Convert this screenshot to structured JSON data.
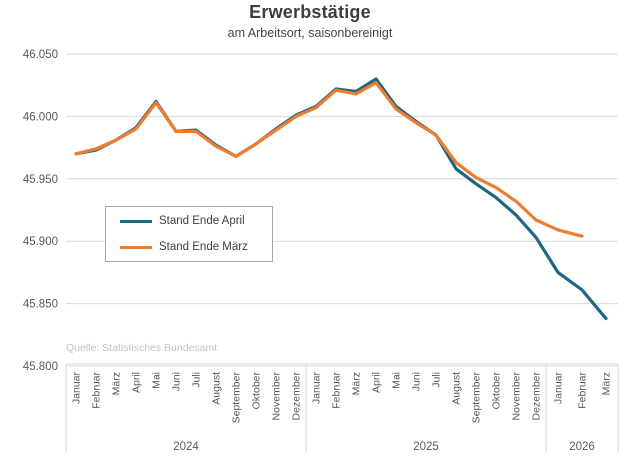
{
  "chart_data": {
    "type": "line",
    "title": "Erwerbstätige",
    "subtitle": "am Arbeitsort, saisonbereinigt",
    "source": "Quelle: Statistisches Bundesamt",
    "ylim": [
      45.8,
      46.05
    ],
    "ytick_step": 0.05,
    "ytick_labels": [
      "45.800",
      "45.850",
      "45.900",
      "45.950",
      "46.000",
      "46.050"
    ],
    "grid": true,
    "legend_position": "inside-left",
    "year_groups": [
      {
        "label": "2024",
        "months": [
          "Januar",
          "Februar",
          "März",
          "April",
          "Mai",
          "Juni",
          "Juli",
          "August",
          "September",
          "Oktober",
          "November",
          "Dezember"
        ]
      },
      {
        "label": "2025",
        "months": [
          "Januar",
          "Februar",
          "März",
          "April",
          "Mai",
          "Juni",
          "Juli",
          "August",
          "September",
          "Oktober",
          "November",
          "Dezember"
        ]
      },
      {
        "label": "2026",
        "months": [
          "Januar",
          "Februar",
          "März"
        ]
      }
    ],
    "series": [
      {
        "name": "Stand Ende April",
        "color": "#1f6584",
        "values": [
          45.97,
          45.973,
          45.981,
          45.991,
          46.012,
          45.988,
          45.989,
          45.977,
          45.968,
          45.978,
          45.99,
          46.001,
          46.008,
          46.022,
          46.02,
          46.03,
          46.008,
          45.996,
          45.985,
          45.958,
          45.946,
          45.935,
          45.921,
          45.903,
          45.875,
          45.861,
          45.838
        ]
      },
      {
        "name": "Stand Ende März",
        "color": "#ed7d31",
        "values": [
          45.97,
          45.974,
          45.981,
          45.99,
          46.011,
          45.988,
          45.988,
          45.976,
          45.968,
          45.978,
          45.989,
          46.0,
          46.007,
          46.021,
          46.018,
          46.027,
          46.006,
          45.995,
          45.985,
          45.963,
          45.951,
          45.943,
          45.932,
          45.917,
          45.909,
          45.904,
          null
        ]
      }
    ],
    "colors": {
      "gridline": "#d9d9d9",
      "axis_text": "#595959",
      "title_text": "#3d3d3d",
      "source_text": "#c2c2c2",
      "legend_border": "#a6a6a6"
    }
  }
}
